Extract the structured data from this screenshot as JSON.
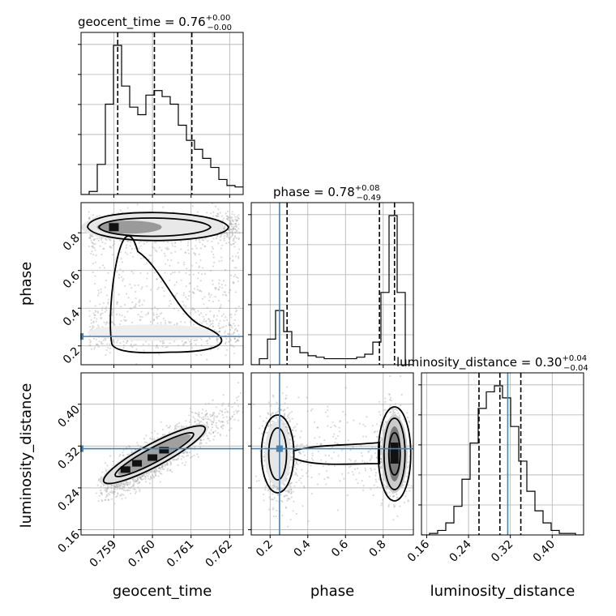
{
  "chart_data": {
    "type": "corner",
    "parameters": [
      "geocent_time",
      "phase",
      "luminosity_distance"
    ],
    "truths": {
      "geocent_time": null,
      "phase": 0.25,
      "luminosity_distance": 0.315
    },
    "titles": [
      {
        "name": "geocent_time",
        "text": "geocent_time = 0.76",
        "plus": "+0.00",
        "minus": "−0.00"
      },
      {
        "name": "phase",
        "text": "phase = 0.78",
        "plus": "+0.08",
        "minus": "−0.49"
      },
      {
        "name": "luminosity_distance",
        "text": "luminosity_distance = 0.30",
        "plus": "+0.04",
        "minus": "−0.04"
      }
    ],
    "axes": {
      "geocent_time": {
        "range": [
          0.75815,
          0.76235
        ],
        "ticks": [
          0.759,
          0.76,
          0.761,
          0.762
        ],
        "tick_labels": [
          "0.759",
          "0.760",
          "0.761",
          "0.762"
        ]
      },
      "phase": {
        "range": [
          0.1,
          0.96
        ],
        "ticks": [
          0.2,
          0.4,
          0.6,
          0.8
        ],
        "tick_labels": [
          "0.2",
          "0.4",
          "0.6",
          "0.8"
        ]
      },
      "luminosity_distance": {
        "range": [
          0.15,
          0.46
        ],
        "ticks": [
          0.16,
          0.24,
          0.32,
          0.4
        ],
        "tick_labels": [
          "0.16",
          "0.24",
          "0.32",
          "0.40"
        ]
      }
    },
    "histograms": {
      "geocent_time": {
        "bin_edges": [
          0.75815,
          0.75836,
          0.75857,
          0.75878,
          0.75899,
          0.7592,
          0.75941,
          0.75962,
          0.75983,
          0.76004,
          0.76025,
          0.76046,
          0.76067,
          0.76088,
          0.76109,
          0.7613,
          0.76151,
          0.76172,
          0.76193,
          0.76214,
          0.76235
        ],
        "counts": [
          0,
          0.02,
          0.2,
          0.6,
          0.99,
          0.72,
          0.58,
          0.53,
          0.66,
          0.69,
          0.65,
          0.6,
          0.46,
          0.36,
          0.3,
          0.24,
          0.18,
          0.1,
          0.06,
          0.05
        ],
        "quantiles": [
          0.7591,
          0.76005,
          0.76102
        ]
      },
      "phase": {
        "bin_edges": [
          0.1,
          0.143,
          0.186,
          0.229,
          0.272,
          0.315,
          0.358,
          0.401,
          0.444,
          0.487,
          0.53,
          0.573,
          0.616,
          0.659,
          0.702,
          0.745,
          0.788,
          0.831,
          0.874,
          0.917,
          0.96
        ],
        "counts": [
          0,
          0.04,
          0.17,
          0.36,
          0.22,
          0.12,
          0.08,
          0.06,
          0.05,
          0.04,
          0.04,
          0.04,
          0.04,
          0.05,
          0.07,
          0.15,
          0.48,
          0.99,
          0.48,
          0
        ],
        "quantiles": [
          0.29,
          0.78,
          0.86
        ]
      },
      "luminosity_distance": {
        "bin_edges": [
          0.15,
          0.1655,
          0.181,
          0.1965,
          0.212,
          0.2275,
          0.243,
          0.2585,
          0.274,
          0.2895,
          0.305,
          0.3205,
          0.336,
          0.3515,
          0.367,
          0.3825,
          0.398,
          0.4135,
          0.429,
          0.4445,
          0.46
        ],
        "counts": [
          0,
          0.01,
          0.03,
          0.08,
          0.19,
          0.37,
          0.61,
          0.84,
          0.95,
          0.99,
          0.91,
          0.72,
          0.49,
          0.29,
          0.16,
          0.08,
          0.03,
          0.01,
          0.01,
          0
        ],
        "quantiles": [
          0.26,
          0.3,
          0.34
        ]
      }
    },
    "pairs": [
      {
        "x": "geocent_time",
        "y": "phase",
        "description": "bimodal in phase, clusters near 0.83 and 0.27 spanning full geocent_time range"
      },
      {
        "x": "geocent_time",
        "y": "luminosity_distance",
        "description": "strong positive correlation"
      },
      {
        "x": "phase",
        "y": "luminosity_distance",
        "description": "two clusters at phase ~0.25 and ~0.85, luminosity_distance ~0.30"
      }
    ]
  }
}
